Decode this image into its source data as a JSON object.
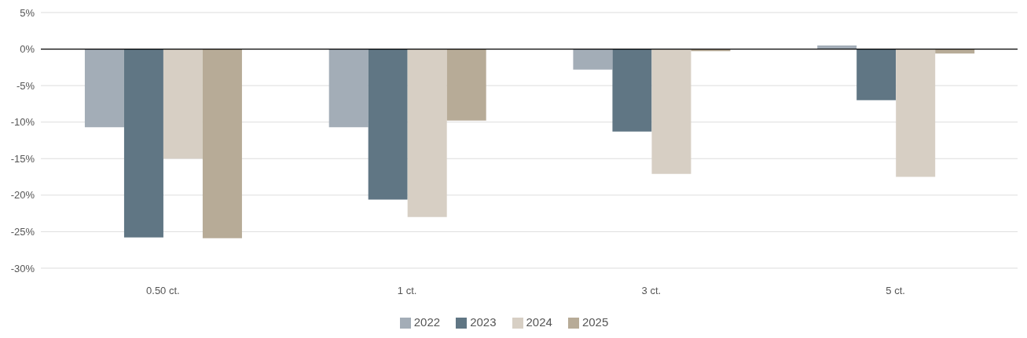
{
  "chart_data": {
    "type": "bar",
    "categories": [
      "0.50 ct.",
      "1 ct.",
      "3 ct.",
      "5 ct."
    ],
    "series": [
      {
        "name": "2022",
        "color": "#a3adb7",
        "values": [
          -10.7,
          -10.7,
          -2.8,
          0.5
        ]
      },
      {
        "name": "2023",
        "color": "#607684",
        "values": [
          -25.8,
          -20.6,
          -11.3,
          -7.0
        ]
      },
      {
        "name": "2024",
        "color": "#d7cfc4",
        "values": [
          -15.0,
          -23.0,
          -17.1,
          -17.5
        ]
      },
      {
        "name": "2025",
        "color": "#b7ab97",
        "values": [
          -25.9,
          -9.8,
          -0.3,
          -0.6
        ]
      }
    ],
    "ylim": [
      -30,
      5
    ],
    "yticks": [
      {
        "value": -30,
        "label": "-30%"
      },
      {
        "value": -25,
        "label": "-25%"
      },
      {
        "value": -20,
        "label": "-20%"
      },
      {
        "value": -15,
        "label": "-15%"
      },
      {
        "value": -10,
        "label": "-10%"
      },
      {
        "value": -5,
        "label": "-5%"
      },
      {
        "value": 0,
        "label": "0%"
      },
      {
        "value": 5,
        "label": "5%"
      }
    ],
    "ref_lines": [
      {
        "axis": "y",
        "value": 0,
        "color": "#000000"
      }
    ],
    "grid": "y",
    "legend": "bottom"
  }
}
